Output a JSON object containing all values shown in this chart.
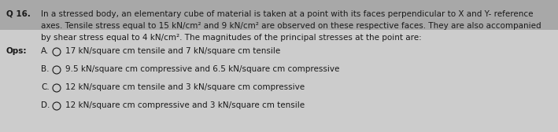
{
  "bg_color_top": "#b0b0b0",
  "bg_color": "#c8c8c8",
  "text_color": "#1a1a1a",
  "q_label": "Q 16.",
  "q_line1": "In a stressed body, an elementary cube of material is taken at a point with its faces perpendicular to X and Y- reference",
  "q_line2": "axes. Tensile stress equal to 15 kN/cm² and 9 kN/cm² are observed on these respective faces. They are also accompanied",
  "q_line3": "by shear stress equal to 4 kN/cm². The magnitudes of the principal stresses at the point are:",
  "ops_label": "Ops:",
  "options": [
    {
      "letter": "A.",
      "text": "17 kN/square cm tensile and 7 kN/square cm tensile"
    },
    {
      "letter": "B.",
      "text": "9.5 kN/square cm compressive and 6.5 kN/square cm compressive"
    },
    {
      "letter": "C.",
      "text": "12 kN/square cm tensile and 3 kN/square cm compressive"
    },
    {
      "letter": "D.",
      "text": "12 kN/square cm compressive and 3 kN/square cm tensile"
    }
  ],
  "fontsize": 7.5,
  "bold_fontsize": 7.5,
  "fig_width": 7.09,
  "fig_height": 1.68,
  "dpi": 100
}
